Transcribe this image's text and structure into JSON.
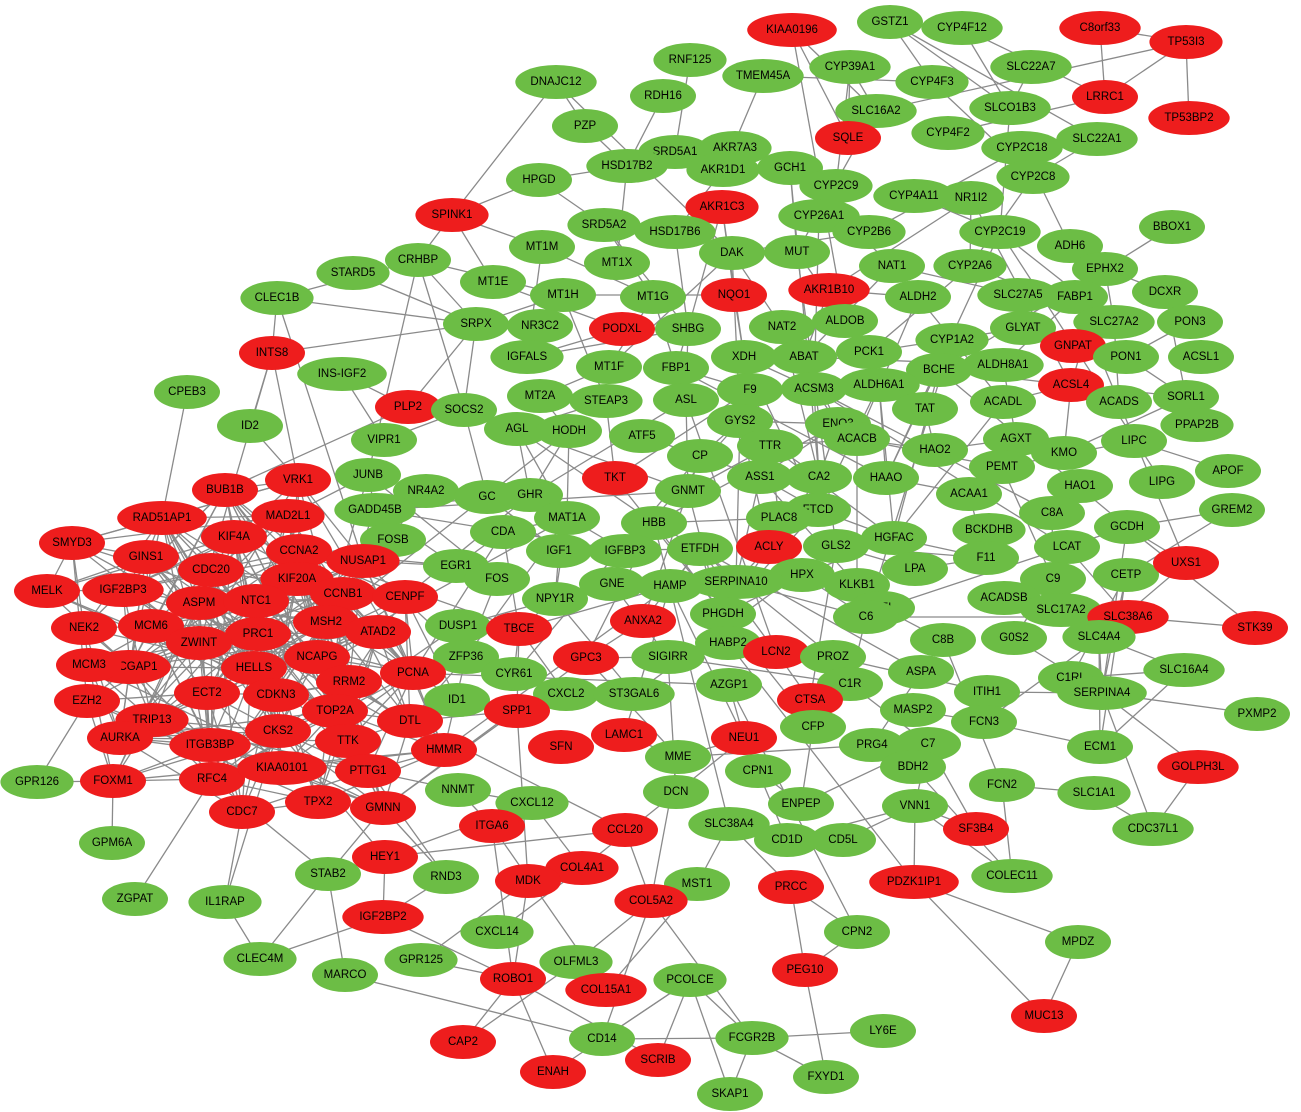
{
  "nodes": [
    {
      "label": "KIAA0196",
      "color": "#ee1d1d"
    },
    {
      "label": "GSTZ1",
      "color": "#6cbd45"
    },
    {
      "label": "CYP4F12",
      "color": "#6cbd45"
    },
    {
      "label": "C8orf33",
      "color": "#ee1d1d"
    },
    {
      "label": "TP53I3",
      "color": "#ee1d1d"
    },
    {
      "label": "LRRC1",
      "color": "#ee1d1d"
    },
    {
      "label": "TP53BP2",
      "color": "#ee1d1d"
    },
    {
      "label": "DNAJC12",
      "color": "#6cbd45"
    },
    {
      "label": "RNF125",
      "color": "#6cbd45"
    },
    {
      "label": "TMEM45A",
      "color": "#6cbd45"
    },
    {
      "label": "CYP39A1",
      "color": "#6cbd45"
    },
    {
      "label": "CYP4F3",
      "color": "#6cbd45"
    },
    {
      "label": "SLC22A7",
      "color": "#6cbd45"
    },
    {
      "label": "RDH16",
      "color": "#6cbd45"
    },
    {
      "label": "SLC16A2",
      "color": "#6cbd45"
    },
    {
      "label": "SLCO1B3",
      "color": "#6cbd45"
    },
    {
      "label": "PZP",
      "color": "#6cbd45"
    },
    {
      "label": "AKR7A3",
      "color": "#6cbd45"
    },
    {
      "label": "SQLE",
      "color": "#ee1d1d"
    },
    {
      "label": "CYP2C18",
      "color": "#6cbd45"
    },
    {
      "label": "SLC22A1",
      "color": "#6cbd45"
    },
    {
      "label": "SRD5A1",
      "color": "#6cbd45"
    },
    {
      "label": "CYP4F2",
      "color": "#6cbd45"
    },
    {
      "label": "HSD17B2",
      "color": "#6cbd45"
    },
    {
      "label": "AKR1D1",
      "color": "#6cbd45"
    },
    {
      "label": "GCH1",
      "color": "#6cbd45"
    },
    {
      "label": "CYP2C9",
      "color": "#6cbd45"
    },
    {
      "label": "CYP4A11",
      "color": "#6cbd45"
    },
    {
      "label": "CYP2C8",
      "color": "#6cbd45"
    },
    {
      "label": "HPGD",
      "color": "#6cbd45"
    },
    {
      "label": "AKR1C3",
      "color": "#ee1d1d"
    },
    {
      "label": "NR1I2",
      "color": "#6cbd45"
    },
    {
      "label": "SPINK1",
      "color": "#ee1d1d"
    },
    {
      "label": "SRD5A2",
      "color": "#6cbd45"
    },
    {
      "label": "HSD17B6",
      "color": "#6cbd45"
    },
    {
      "label": "CYP26A1",
      "color": "#6cbd45"
    },
    {
      "label": "CYP2B6",
      "color": "#6cbd45"
    },
    {
      "label": "CYP2C19",
      "color": "#6cbd45"
    },
    {
      "label": "BBOX1",
      "color": "#6cbd45"
    },
    {
      "label": "MT1M",
      "color": "#6cbd45"
    },
    {
      "label": "DAK",
      "color": "#6cbd45"
    },
    {
      "label": "MUT",
      "color": "#6cbd45"
    },
    {
      "label": "ADH6",
      "color": "#6cbd45"
    },
    {
      "label": "STARD5",
      "color": "#6cbd45"
    },
    {
      "label": "CRHBP",
      "color": "#6cbd45"
    },
    {
      "label": "MT1X",
      "color": "#6cbd45"
    },
    {
      "label": "NAT1",
      "color": "#6cbd45"
    },
    {
      "label": "CYP2A6",
      "color": "#6cbd45"
    },
    {
      "label": "EPHX2",
      "color": "#6cbd45"
    },
    {
      "label": "MT1E",
      "color": "#6cbd45"
    },
    {
      "label": "DCXR",
      "color": "#6cbd45"
    },
    {
      "label": "CLEC1B",
      "color": "#6cbd45"
    },
    {
      "label": "MT1H",
      "color": "#6cbd45"
    },
    {
      "label": "MT1G",
      "color": "#6cbd45"
    },
    {
      "label": "NQO1",
      "color": "#ee1d1d"
    },
    {
      "label": "AKR1B10",
      "color": "#ee1d1d"
    },
    {
      "label": "ALDH2",
      "color": "#6cbd45"
    },
    {
      "label": "SLC27A5",
      "color": "#6cbd45"
    },
    {
      "label": "FABP1",
      "color": "#6cbd45"
    },
    {
      "label": "SRPX",
      "color": "#6cbd45"
    },
    {
      "label": "NR3C2",
      "color": "#6cbd45"
    },
    {
      "label": "PODXL",
      "color": "#ee1d1d"
    },
    {
      "label": "SHBG",
      "color": "#6cbd45"
    },
    {
      "label": "NAT2",
      "color": "#6cbd45"
    },
    {
      "label": "ALDOB",
      "color": "#6cbd45"
    },
    {
      "label": "GLYAT",
      "color": "#6cbd45"
    },
    {
      "label": "SLC27A2",
      "color": "#6cbd45"
    },
    {
      "label": "PON3",
      "color": "#6cbd45"
    },
    {
      "label": "INTS8",
      "color": "#ee1d1d"
    },
    {
      "label": "CYP1A2",
      "color": "#6cbd45"
    },
    {
      "label": "GNPAT",
      "color": "#ee1d1d"
    },
    {
      "label": "IGFALS",
      "color": "#6cbd45"
    },
    {
      "label": "XDH",
      "color": "#6cbd45"
    },
    {
      "label": "ABAT",
      "color": "#6cbd45"
    },
    {
      "label": "PCK1",
      "color": "#6cbd45"
    },
    {
      "label": "ALDH8A1",
      "color": "#6cbd45"
    },
    {
      "label": "PON1",
      "color": "#6cbd45"
    },
    {
      "label": "ACSL1",
      "color": "#6cbd45"
    },
    {
      "label": "INS-IGF2",
      "color": "#6cbd45"
    },
    {
      "label": "MT1F",
      "color": "#6cbd45"
    },
    {
      "label": "FBP1",
      "color": "#6cbd45"
    },
    {
      "label": "BCHE",
      "color": "#6cbd45"
    },
    {
      "label": "ACSL4",
      "color": "#ee1d1d"
    },
    {
      "label": "CPEB3",
      "color": "#6cbd45"
    },
    {
      "label": "MT2A",
      "color": "#6cbd45"
    },
    {
      "label": "STEAP3",
      "color": "#6cbd45"
    },
    {
      "label": "ASL",
      "color": "#6cbd45"
    },
    {
      "label": "F9",
      "color": "#6cbd45"
    },
    {
      "label": "ACSM3",
      "color": "#6cbd45"
    },
    {
      "label": "ALDH6A1",
      "color": "#6cbd45"
    },
    {
      "label": "ACADL",
      "color": "#6cbd45"
    },
    {
      "label": "ACADS",
      "color": "#6cbd45"
    },
    {
      "label": "SORL1",
      "color": "#6cbd45"
    },
    {
      "label": "PLP2",
      "color": "#ee1d1d"
    },
    {
      "label": "SOCS2",
      "color": "#6cbd45"
    },
    {
      "label": "TAT",
      "color": "#6cbd45"
    },
    {
      "label": "ID2",
      "color": "#6cbd45"
    },
    {
      "label": "AGL",
      "color": "#6cbd45"
    },
    {
      "label": "HODH",
      "color": "#6cbd45"
    },
    {
      "label": "GYS2",
      "color": "#6cbd45"
    },
    {
      "label": "ENO3",
      "color": "#6cbd45"
    },
    {
      "label": "PPAP2B",
      "color": "#6cbd45"
    },
    {
      "label": "ATF5",
      "color": "#6cbd45"
    },
    {
      "label": "VIPR1",
      "color": "#6cbd45"
    },
    {
      "label": "ACACB",
      "color": "#6cbd45"
    },
    {
      "label": "AGXT",
      "color": "#6cbd45"
    },
    {
      "label": "LIPC",
      "color": "#6cbd45"
    },
    {
      "label": "TTR",
      "color": "#6cbd45"
    },
    {
      "label": "HAO2",
      "color": "#6cbd45"
    },
    {
      "label": "KMO",
      "color": "#6cbd45"
    },
    {
      "label": "CP",
      "color": "#6cbd45"
    },
    {
      "label": "TKT",
      "color": "#ee1d1d"
    },
    {
      "label": "PEMT",
      "color": "#6cbd45"
    },
    {
      "label": "APOF",
      "color": "#6cbd45"
    },
    {
      "label": "VRK1",
      "color": "#ee1d1d"
    },
    {
      "label": "JUNB",
      "color": "#6cbd45"
    },
    {
      "label": "ASS1",
      "color": "#6cbd45"
    },
    {
      "label": "CA2",
      "color": "#6cbd45"
    },
    {
      "label": "HAAO",
      "color": "#6cbd45"
    },
    {
      "label": "HAO1",
      "color": "#6cbd45"
    },
    {
      "label": "LIPG",
      "color": "#6cbd45"
    },
    {
      "label": "BUB1B",
      "color": "#ee1d1d"
    },
    {
      "label": "NR4A2",
      "color": "#6cbd45"
    },
    {
      "label": "GC",
      "color": "#6cbd45"
    },
    {
      "label": "GHR",
      "color": "#6cbd45"
    },
    {
      "label": "GNMT",
      "color": "#6cbd45"
    },
    {
      "label": "ACAA1",
      "color": "#6cbd45"
    },
    {
      "label": "RAD51AP1",
      "color": "#ee1d1d"
    },
    {
      "label": "MAD2L1",
      "color": "#ee1d1d"
    },
    {
      "label": "GADD45B",
      "color": "#6cbd45"
    },
    {
      "label": "C8A",
      "color": "#6cbd45"
    },
    {
      "label": "GREM2",
      "color": "#6cbd45"
    },
    {
      "label": "FTCD",
      "color": "#6cbd45"
    },
    {
      "label": "BCKDHB",
      "color": "#6cbd45"
    },
    {
      "label": "GCDH",
      "color": "#6cbd45"
    },
    {
      "label": "KIF4A",
      "color": "#ee1d1d"
    },
    {
      "label": "HBB",
      "color": "#6cbd45"
    },
    {
      "label": "PLAC8",
      "color": "#6cbd45"
    },
    {
      "label": "SMYD3",
      "color": "#ee1d1d"
    },
    {
      "label": "FOSB",
      "color": "#6cbd45"
    },
    {
      "label": "MAT1A",
      "color": "#6cbd45"
    },
    {
      "label": "CDA",
      "color": "#6cbd45"
    },
    {
      "label": "ACLY",
      "color": "#ee1d1d"
    },
    {
      "label": "GLS2",
      "color": "#6cbd45"
    },
    {
      "label": "HGFAC",
      "color": "#6cbd45"
    },
    {
      "label": "LCAT",
      "color": "#6cbd45"
    },
    {
      "label": "CCNA2",
      "color": "#ee1d1d"
    },
    {
      "label": "GINS1",
      "color": "#ee1d1d"
    },
    {
      "label": "NUSAP1",
      "color": "#ee1d1d"
    },
    {
      "label": "IGF1",
      "color": "#6cbd45"
    },
    {
      "label": "IGFBP3",
      "color": "#6cbd45"
    },
    {
      "label": "ETFDH",
      "color": "#6cbd45"
    },
    {
      "label": "CDC20",
      "color": "#ee1d1d"
    },
    {
      "label": "EGR1",
      "color": "#6cbd45"
    },
    {
      "label": "HPX",
      "color": "#6cbd45"
    },
    {
      "label": "F11",
      "color": "#6cbd45"
    },
    {
      "label": "CETP",
      "color": "#6cbd45"
    },
    {
      "label": "UXS1",
      "color": "#ee1d1d"
    },
    {
      "label": "MELK",
      "color": "#ee1d1d"
    },
    {
      "label": "IGF2BP3",
      "color": "#ee1d1d"
    },
    {
      "label": "KIF20A",
      "color": "#ee1d1d"
    },
    {
      "label": "LPA",
      "color": "#6cbd45"
    },
    {
      "label": "C9",
      "color": "#6cbd45"
    },
    {
      "label": "CCNB1",
      "color": "#ee1d1d"
    },
    {
      "label": "SERPINA10",
      "color": "#6cbd45"
    },
    {
      "label": "KLKB1",
      "color": "#6cbd45"
    },
    {
      "label": "FOS",
      "color": "#6cbd45"
    },
    {
      "label": "NPY1R",
      "color": "#6cbd45"
    },
    {
      "label": "GNE",
      "color": "#6cbd45"
    },
    {
      "label": "HAMP",
      "color": "#6cbd45"
    },
    {
      "label": "CENPF",
      "color": "#ee1d1d"
    },
    {
      "label": "ASPM",
      "color": "#ee1d1d"
    },
    {
      "label": "NTC1",
      "color": "#ee1d1d"
    },
    {
      "label": "CFI",
      "color": "#6cbd45"
    },
    {
      "label": "ACADSB",
      "color": "#6cbd45"
    },
    {
      "label": "SLC17A2",
      "color": "#6cbd45"
    },
    {
      "label": "SLC38A6",
      "color": "#ee1d1d"
    },
    {
      "label": "STK39",
      "color": "#ee1d1d"
    },
    {
      "label": "NEK2",
      "color": "#ee1d1d"
    },
    {
      "label": "MCM6",
      "color": "#ee1d1d"
    },
    {
      "label": "MSH2",
      "color": "#ee1d1d"
    },
    {
      "label": "ATAD2",
      "color": "#ee1d1d"
    },
    {
      "label": "DUSP1",
      "color": "#6cbd45"
    },
    {
      "label": "PHGDH",
      "color": "#6cbd45"
    },
    {
      "label": "ANXA2",
      "color": "#ee1d1d"
    },
    {
      "label": "TBCE",
      "color": "#ee1d1d"
    },
    {
      "label": "C6",
      "color": "#6cbd45"
    },
    {
      "label": "PRC1",
      "color": "#ee1d1d"
    },
    {
      "label": "ZWINT",
      "color": "#ee1d1d"
    },
    {
      "label": "C8B",
      "color": "#6cbd45"
    },
    {
      "label": "G0S2",
      "color": "#6cbd45"
    },
    {
      "label": "SLC4A4",
      "color": "#6cbd45"
    },
    {
      "label": "NCAPG",
      "color": "#ee1d1d"
    },
    {
      "label": "RACGAP1",
      "color": "#ee1d1d"
    },
    {
      "label": "MCM3",
      "color": "#ee1d1d"
    },
    {
      "label": "ZFP36",
      "color": "#6cbd45"
    },
    {
      "label": "CYR61",
      "color": "#6cbd45"
    },
    {
      "label": "GPC3",
      "color": "#ee1d1d"
    },
    {
      "label": "SIGIRR",
      "color": "#6cbd45"
    },
    {
      "label": "HABP2",
      "color": "#6cbd45"
    },
    {
      "label": "LCN2",
      "color": "#ee1d1d"
    },
    {
      "label": "PROZ",
      "color": "#6cbd45"
    },
    {
      "label": "C1RL",
      "color": "#6cbd45"
    },
    {
      "label": "SLC16A4",
      "color": "#6cbd45"
    },
    {
      "label": "HELLS",
      "color": "#ee1d1d"
    },
    {
      "label": "PCNA",
      "color": "#ee1d1d"
    },
    {
      "label": "RRM2",
      "color": "#ee1d1d"
    },
    {
      "label": "SERPINA4",
      "color": "#6cbd45"
    },
    {
      "label": "ASPA",
      "color": "#6cbd45"
    },
    {
      "label": "EZH2",
      "color": "#ee1d1d"
    },
    {
      "label": "ECT2",
      "color": "#ee1d1d"
    },
    {
      "label": "CDKN3",
      "color": "#ee1d1d"
    },
    {
      "label": "C1R",
      "color": "#6cbd45"
    },
    {
      "label": "ITIH1",
      "color": "#6cbd45"
    },
    {
      "label": "PXMP2",
      "color": "#6cbd45"
    },
    {
      "label": "CXCL2",
      "color": "#6cbd45"
    },
    {
      "label": "ST3GAL6",
      "color": "#6cbd45"
    },
    {
      "label": "AZGP1",
      "color": "#6cbd45"
    },
    {
      "label": "ID1",
      "color": "#6cbd45"
    },
    {
      "label": "CTSA",
      "color": "#ee1d1d"
    },
    {
      "label": "MASP2",
      "color": "#6cbd45"
    },
    {
      "label": "FCN3",
      "color": "#6cbd45"
    },
    {
      "label": "TOP2A",
      "color": "#ee1d1d"
    },
    {
      "label": "TRIP13",
      "color": "#ee1d1d"
    },
    {
      "label": "CKS2",
      "color": "#ee1d1d"
    },
    {
      "label": "DTL",
      "color": "#ee1d1d"
    },
    {
      "label": "SPP1",
      "color": "#ee1d1d"
    },
    {
      "label": "AURKA",
      "color": "#ee1d1d"
    },
    {
      "label": "ITGB3BP",
      "color": "#ee1d1d"
    },
    {
      "label": "TTK",
      "color": "#ee1d1d"
    },
    {
      "label": "LAMC1",
      "color": "#ee1d1d"
    },
    {
      "label": "NEU1",
      "color": "#ee1d1d"
    },
    {
      "label": "CFP",
      "color": "#6cbd45"
    },
    {
      "label": "PRG4",
      "color": "#6cbd45"
    },
    {
      "label": "C7",
      "color": "#6cbd45"
    },
    {
      "label": "ECM1",
      "color": "#6cbd45"
    },
    {
      "label": "HMMR",
      "color": "#ee1d1d"
    },
    {
      "label": "SFN",
      "color": "#ee1d1d"
    },
    {
      "label": "MME",
      "color": "#6cbd45"
    },
    {
      "label": "BDH2",
      "color": "#6cbd45"
    },
    {
      "label": "GOLPH3L",
      "color": "#ee1d1d"
    },
    {
      "label": "GPR126",
      "color": "#6cbd45"
    },
    {
      "label": "FOXM1",
      "color": "#ee1d1d"
    },
    {
      "label": "RFC4",
      "color": "#ee1d1d"
    },
    {
      "label": "KIAA0101",
      "color": "#ee1d1d"
    },
    {
      "label": "PTTG1",
      "color": "#ee1d1d"
    },
    {
      "label": "CPN1",
      "color": "#6cbd45"
    },
    {
      "label": "FCN2",
      "color": "#6cbd45"
    },
    {
      "label": "SLC1A1",
      "color": "#6cbd45"
    },
    {
      "label": "NNMT",
      "color": "#6cbd45"
    },
    {
      "label": "DCN",
      "color": "#6cbd45"
    },
    {
      "label": "VNN1",
      "color": "#6cbd45"
    },
    {
      "label": "CDC7",
      "color": "#ee1d1d"
    },
    {
      "label": "TPX2",
      "color": "#ee1d1d"
    },
    {
      "label": "GMNN",
      "color": "#ee1d1d"
    },
    {
      "label": "CXCL12",
      "color": "#6cbd45"
    },
    {
      "label": "ENPEP",
      "color": "#6cbd45"
    },
    {
      "label": "CDC37L1",
      "color": "#6cbd45"
    },
    {
      "label": "GPM6A",
      "color": "#6cbd45"
    },
    {
      "label": "ITGA6",
      "color": "#ee1d1d"
    },
    {
      "label": "SLC38A4",
      "color": "#6cbd45"
    },
    {
      "label": "CCL20",
      "color": "#ee1d1d"
    },
    {
      "label": "SF3B4",
      "color": "#ee1d1d"
    },
    {
      "label": "CD1D",
      "color": "#6cbd45"
    },
    {
      "label": "CD5L",
      "color": "#6cbd45"
    },
    {
      "label": "HEY1",
      "color": "#ee1d1d"
    },
    {
      "label": "STAB2",
      "color": "#6cbd45"
    },
    {
      "label": "COL4A1",
      "color": "#ee1d1d"
    },
    {
      "label": "MDK",
      "color": "#ee1d1d"
    },
    {
      "label": "MST1",
      "color": "#6cbd45"
    },
    {
      "label": "COLEC11",
      "color": "#6cbd45"
    },
    {
      "label": "PRCC",
      "color": "#ee1d1d"
    },
    {
      "label": "PDZK1IP1",
      "color": "#ee1d1d"
    },
    {
      "label": "RND3",
      "color": "#6cbd45"
    },
    {
      "label": "ZGPAT",
      "color": "#6cbd45"
    },
    {
      "label": "IL1RAP",
      "color": "#6cbd45"
    },
    {
      "label": "COL5A2",
      "color": "#ee1d1d"
    },
    {
      "label": "IGF2BP2",
      "color": "#ee1d1d"
    },
    {
      "label": "CXCL14",
      "color": "#6cbd45"
    },
    {
      "label": "CPN2",
      "color": "#6cbd45"
    },
    {
      "label": "MPDZ",
      "color": "#6cbd45"
    },
    {
      "label": "CLEC4M",
      "color": "#6cbd45"
    },
    {
      "label": "GPR125",
      "color": "#6cbd45"
    },
    {
      "label": "OLFML3",
      "color": "#6cbd45"
    },
    {
      "label": "PEG10",
      "color": "#ee1d1d"
    },
    {
      "label": "MARCO",
      "color": "#6cbd45"
    },
    {
      "label": "ROBO1",
      "color": "#ee1d1d"
    },
    {
      "label": "COL15A1",
      "color": "#ee1d1d"
    },
    {
      "label": "PCOLCE",
      "color": "#6cbd45"
    },
    {
      "label": "MUC13",
      "color": "#ee1d1d"
    },
    {
      "label": "CD14",
      "color": "#6cbd45"
    },
    {
      "label": "FCGR2B",
      "color": "#6cbd45"
    },
    {
      "label": "LY6E",
      "color": "#6cbd45"
    },
    {
      "label": "CAP2",
      "color": "#ee1d1d"
    },
    {
      "label": "ENAH",
      "color": "#ee1d1d"
    },
    {
      "label": "SCRIB",
      "color": "#ee1d1d"
    },
    {
      "label": "FXYD1",
      "color": "#6cbd45"
    },
    {
      "label": "SKAP1",
      "color": "#6cbd45"
    }
  ]
}
